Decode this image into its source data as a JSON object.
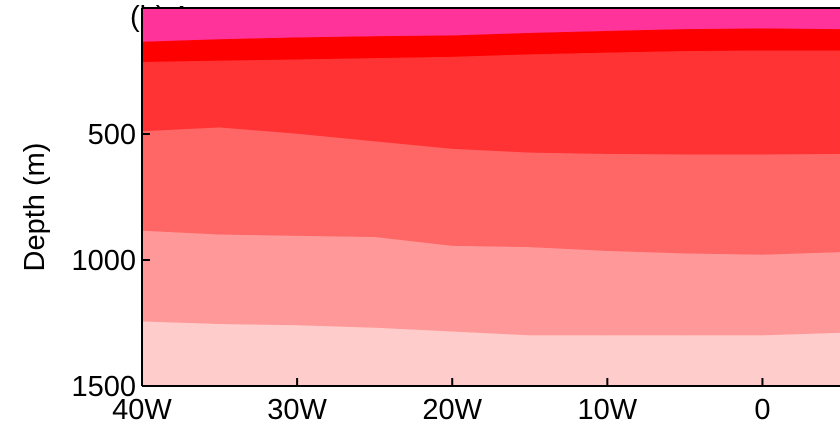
{
  "chart_data": {
    "type": "area",
    "title": "(b) Ag",
    "xlabel": "",
    "ylabel": "Depth (m)",
    "x_ticks": [
      {
        "value": -40,
        "label": "40W"
      },
      {
        "value": -30,
        "label": "30W"
      },
      {
        "value": -20,
        "label": "20W"
      },
      {
        "value": -10,
        "label": "10W"
      },
      {
        "value": 0,
        "label": "0"
      }
    ],
    "y_ticks": [
      {
        "value": 500,
        "label": "500"
      },
      {
        "value": 1000,
        "label": "1000"
      },
      {
        "value": 1500,
        "label": "1500"
      }
    ],
    "xlim": [
      -40,
      5
    ],
    "ylim": [
      0,
      1500
    ],
    "y_inverted": true,
    "x": [
      -40,
      -35,
      -30,
      -25,
      -20,
      -15,
      -10,
      -5,
      0,
      5
    ],
    "boundaries": [
      {
        "values": [
          0,
          0,
          0,
          0,
          0,
          0,
          0,
          0,
          0,
          0
        ]
      },
      {
        "values": [
          135,
          125,
          118,
          113,
          110,
          100,
          92,
          85,
          82,
          85
        ]
      },
      {
        "values": [
          215,
          210,
          205,
          200,
          195,
          185,
          178,
          172,
          170,
          170
        ]
      },
      {
        "values": [
          490,
          475,
          500,
          530,
          560,
          575,
          580,
          582,
          582,
          580
        ]
      },
      {
        "values": [
          885,
          900,
          905,
          910,
          945,
          950,
          965,
          975,
          980,
          970
        ]
      },
      {
        "values": [
          1245,
          1255,
          1260,
          1270,
          1285,
          1300,
          1300,
          1300,
          1300,
          1290
        ]
      },
      {
        "values": [
          1500,
          1500,
          1500,
          1500,
          1500,
          1500,
          1500,
          1500,
          1500,
          1500
        ]
      }
    ],
    "layer_colors": [
      "#ff3399",
      "#ff0000",
      "#ff3333",
      "#ff6666",
      "#ff9999",
      "#ffcccc"
    ]
  }
}
